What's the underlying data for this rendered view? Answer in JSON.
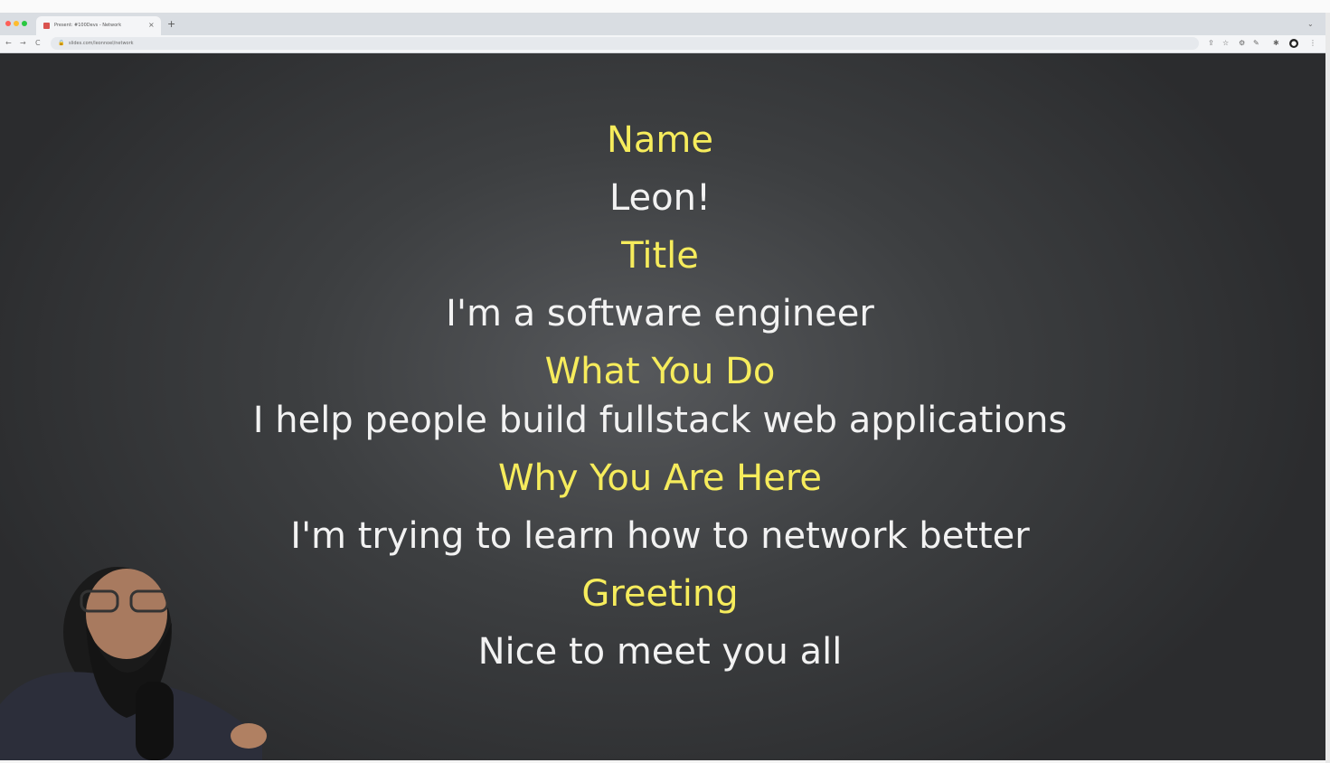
{
  "browser": {
    "tab_title": "Present: #100Devs - Network",
    "tab_close": "×",
    "new_tab": "+",
    "url": "slides.com/leonnoel/network",
    "nav_back": "←",
    "nav_forward": "→",
    "nav_reload": "C",
    "lock": "🔒",
    "strip_menu": "⌄",
    "toolbar_icons": [
      "⇪",
      "☆",
      "⚙",
      "✎",
      "✱"
    ],
    "profile": "●",
    "menu": "⋮",
    "traffic_colors": [
      "#fe5f57",
      "#febc2e",
      "#28c840"
    ]
  },
  "slide": {
    "rows": [
      {
        "label": "Name",
        "value": "Leon!"
      },
      {
        "label": "Title",
        "value": "I'm a software engineer"
      },
      {
        "label": "What You Do",
        "value": "I help people build fullstack web applications"
      },
      {
        "label": "Why You Are Here",
        "value": "I'm trying to learn how to network better"
      },
      {
        "label": "Greeting",
        "value": "Nice to meet you all"
      }
    ],
    "label_color": "#f6ec5c",
    "text_color": "#f2f2f2"
  }
}
